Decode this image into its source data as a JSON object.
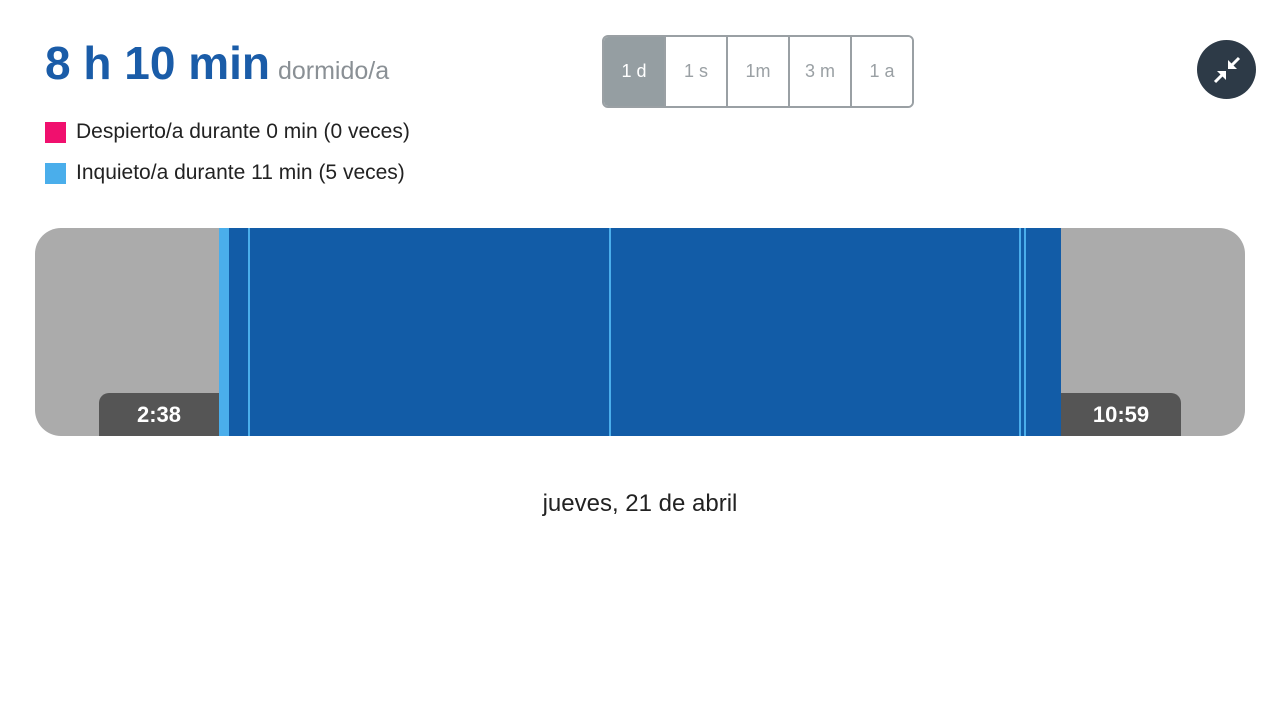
{
  "header": {
    "duration": "8 h 10 min",
    "duration_suffix": "dormido/a"
  },
  "legend": [
    {
      "label": "Despierto/a durante 0 min (0 veces)",
      "color": "#f0106e"
    },
    {
      "label": "Inquieto/a durante 11 min (5 veces)",
      "color": "#4aaeeb"
    }
  ],
  "range_tabs": [
    {
      "label": "1 d",
      "active": true
    },
    {
      "label": "1 s"
    },
    {
      "label": "1m"
    },
    {
      "label": "3 m"
    },
    {
      "label": "1 a"
    }
  ],
  "collapse_button": {
    "icon": "collapse-arrows-icon"
  },
  "timeline": {
    "start": "2:38",
    "end": "10:59",
    "sleep_color": "#125ca7",
    "restless_color": "#4aaeeb",
    "restless_segments": [
      {
        "start": "2:38",
        "end": "2:44"
      },
      {
        "start": "2:55",
        "end": "2:56"
      },
      {
        "start": "6:30",
        "end": "6:31"
      },
      {
        "start": "10:34",
        "end": "10:35"
      },
      {
        "start": "10:37",
        "end": "10:38"
      }
    ]
  },
  "date": "jueves, 21 de abril"
}
